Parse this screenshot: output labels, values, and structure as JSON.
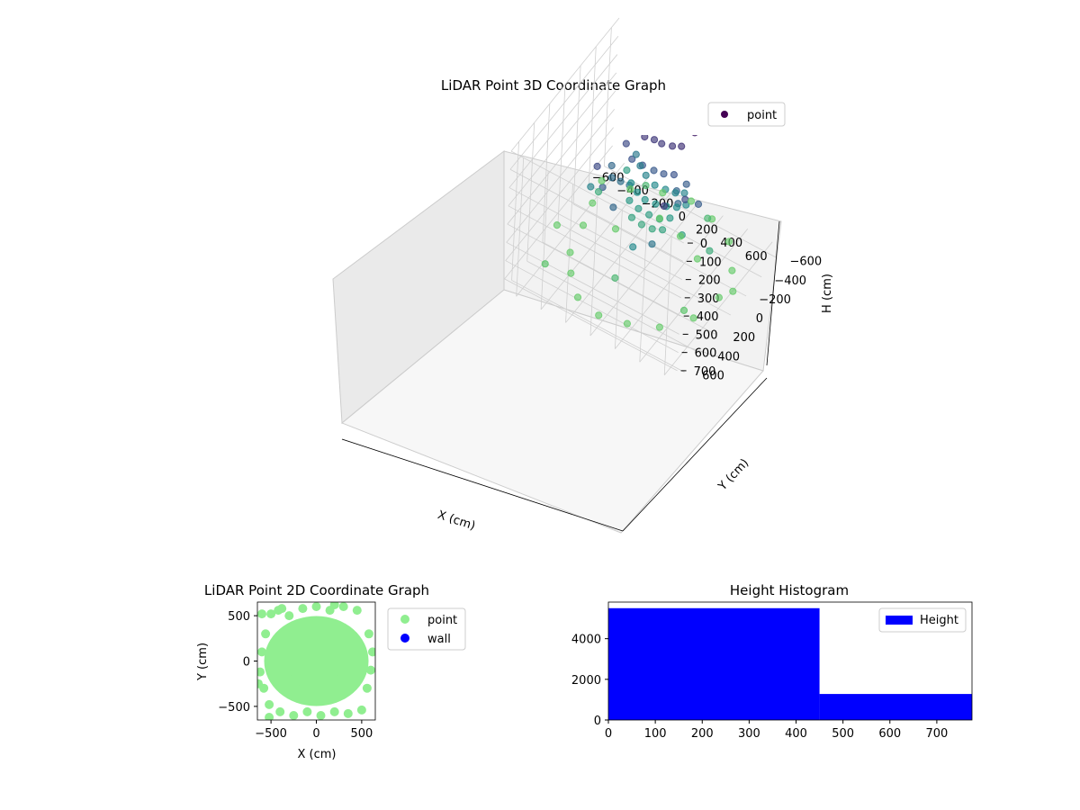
{
  "chart_data": [
    {
      "type": "scatter",
      "projection": "3d",
      "title": "LiDAR Point 3D Coordinate Graph",
      "xlabel": "X (cm)",
      "ylabel": "Y (cm)",
      "zlabel": "H (cm)",
      "xlim": [
        -700,
        700
      ],
      "ylim": [
        -700,
        700
      ],
      "zlim": [
        0,
        760
      ],
      "z_inverted": true,
      "xticks": [
        "−600",
        "−400",
        "−200",
        "0",
        "200",
        "400",
        "600"
      ],
      "yticks": [
        "−600",
        "−400",
        "−200",
        "0",
        "200",
        "400",
        "600"
      ],
      "zticks": [
        "0",
        "100",
        "200",
        "300",
        "400",
        "500",
        "600",
        "700"
      ],
      "grid": true,
      "colormap": "viridis",
      "legend": {
        "placement": "top-right",
        "entries": [
          "point"
        ]
      },
      "series": [
        {
          "name": "point",
          "color": "#440154",
          "points": [
            [
              -150,
              -200,
              60
            ],
            [
              -60,
              -200,
              55
            ],
            [
              40,
              -200,
              52
            ],
            [
              130,
              -220,
              58
            ],
            [
              200,
              -250,
              70
            ],
            [
              -200,
              -250,
              80
            ],
            [
              -220,
              -150,
              90
            ],
            [
              -180,
              -100,
              120
            ],
            [
              -120,
              -120,
              140
            ],
            [
              -60,
              -150,
              150
            ],
            [
              0,
              -150,
              150
            ],
            [
              80,
              -160,
              140
            ],
            [
              140,
              -180,
              130
            ],
            [
              -240,
              -80,
              200
            ],
            [
              -160,
              -30,
              230
            ],
            [
              -80,
              -40,
              240
            ],
            [
              0,
              -60,
              250
            ],
            [
              80,
              -60,
              240
            ],
            [
              150,
              -80,
              230
            ],
            [
              -300,
              0,
              300
            ],
            [
              -260,
              60,
              320
            ],
            [
              -200,
              40,
              330
            ],
            [
              -140,
              20,
              340
            ],
            [
              200,
              -40,
              280
            ],
            [
              240,
              -100,
              260
            ],
            [
              250,
              20,
              300
            ],
            [
              -260,
              -260,
              360
            ],
            [
              -200,
              -220,
              380
            ],
            [
              -140,
              -200,
              400
            ],
            [
              -60,
              -190,
              420
            ],
            [
              20,
              -200,
              420
            ],
            [
              100,
              -200,
              410
            ],
            [
              160,
              -220,
              400
            ],
            [
              -220,
              -140,
              440
            ],
            [
              -150,
              -110,
              450
            ],
            [
              -80,
              -100,
              460
            ],
            [
              0,
              -110,
              460
            ],
            [
              80,
              -120,
              450
            ],
            [
              150,
              -140,
              440
            ],
            [
              200,
              -180,
              430
            ],
            [
              -180,
              -60,
              480
            ],
            [
              -100,
              -50,
              490
            ],
            [
              -20,
              -60,
              500
            ],
            [
              60,
              -70,
              500
            ],
            [
              130,
              -90,
              480
            ],
            [
              -120,
              0,
              520
            ],
            [
              -40,
              0,
              530
            ],
            [
              40,
              -10,
              530
            ],
            [
              110,
              -30,
              520
            ],
            [
              260,
              -40,
              500
            ],
            [
              -300,
              200,
              200
            ],
            [
              -220,
              250,
              260
            ],
            [
              350,
              100,
              200
            ],
            [
              400,
              0,
              260
            ],
            [
              300,
              300,
              150
            ],
            [
              -400,
              100,
              400
            ],
            [
              -350,
              -300,
              500
            ],
            [
              250,
              350,
              350
            ],
            [
              -100,
              300,
              300
            ],
            [
              100,
              350,
              420
            ],
            [
              -550,
              -200,
              700
            ],
            [
              -500,
              0,
              700
            ],
            [
              -450,
              250,
              700
            ],
            [
              -350,
              400,
              700
            ],
            [
              -200,
              550,
              700
            ],
            [
              0,
              600,
              700
            ],
            [
              200,
              550,
              700
            ],
            [
              400,
              450,
              700
            ],
            [
              550,
              250,
              700
            ],
            [
              600,
              0,
              700
            ],
            [
              550,
              -250,
              700
            ],
            [
              400,
              -450,
              700
            ],
            [
              200,
              -550,
              700
            ],
            [
              0,
              -600,
              700
            ],
            [
              -200,
              -550,
              700
            ],
            [
              -400,
              -450,
              700
            ],
            [
              -600,
              -400,
              700
            ],
            [
              -650,
              100,
              700
            ],
            [
              650,
              -100,
              700
            ],
            [
              -100,
              -350,
              700
            ],
            [
              100,
              -300,
              700
            ],
            [
              300,
              -200,
              700
            ],
            [
              -300,
              -100,
              700
            ],
            [
              500,
              300,
              650
            ],
            [
              -500,
              500,
              650
            ],
            [
              -250,
              -400,
              600
            ],
            [
              250,
              -400,
              600
            ],
            [
              450,
              -100,
              550
            ],
            [
              -450,
              -100,
              550
            ],
            [
              0,
              400,
              600
            ]
          ]
        }
      ]
    },
    {
      "type": "scatter",
      "title": "LiDAR Point 2D Coordinate Graph",
      "xlabel": "X (cm)",
      "ylabel": "Y (cm)",
      "xlim": [
        -650,
        650
      ],
      "ylim": [
        -650,
        650
      ],
      "xticks": [
        "−500",
        "0",
        "500"
      ],
      "yticks": [
        "−500",
        "0",
        "500"
      ],
      "legend": {
        "placement": "outside-right",
        "entries": [
          "point",
          "wall"
        ]
      },
      "series": [
        {
          "name": "point",
          "color": "#90ee90",
          "points": [
            [
              -500,
              520
            ],
            [
              -420,
              560
            ],
            [
              -300,
              500
            ],
            [
              -150,
              580
            ],
            [
              0,
              600
            ],
            [
              150,
              560
            ],
            [
              300,
              600
            ],
            [
              450,
              560
            ],
            [
              -560,
              300
            ],
            [
              -600,
              100
            ],
            [
              -620,
              -120
            ],
            [
              -580,
              -300
            ],
            [
              -520,
              -480
            ],
            [
              -400,
              -560
            ],
            [
              -250,
              -600
            ],
            [
              -100,
              -560
            ],
            [
              50,
              -600
            ],
            [
              200,
              -560
            ],
            [
              350,
              -580
            ],
            [
              500,
              -540
            ],
            [
              560,
              -300
            ],
            [
              600,
              -100
            ],
            [
              620,
              100
            ],
            [
              580,
              300
            ],
            [
              -200,
              200
            ],
            [
              100,
              100
            ],
            [
              -50,
              -100
            ],
            [
              250,
              -200
            ],
            [
              -300,
              -200
            ],
            [
              300,
              250
            ],
            [
              0,
              300
            ],
            [
              -400,
              0
            ],
            [
              400,
              0
            ],
            [
              0,
              -350
            ],
            [
              -150,
              -300
            ],
            [
              150,
              350
            ],
            [
              -520,
              -620
            ],
            [
              -600,
              520
            ],
            [
              -640,
              -250
            ],
            [
              -380,
              580
            ],
            [
              200,
              620
            ]
          ]
        },
        {
          "name": "wall",
          "color": "#0000ff",
          "points": []
        }
      ]
    },
    {
      "type": "bar",
      "subtype": "histogram",
      "title": "Height Histogram",
      "xlabel": "",
      "ylabel": "",
      "xlim": [
        0,
        775
      ],
      "ylim": [
        0,
        5800
      ],
      "xticks": [
        "0",
        "100",
        "200",
        "300",
        "400",
        "500",
        "600",
        "700"
      ],
      "yticks": [
        "0",
        "2000",
        "4000"
      ],
      "legend": {
        "placement": "top-right",
        "entries": [
          "Height"
        ]
      },
      "series": [
        {
          "name": "Height",
          "color": "#0000ff",
          "bins": [
            {
              "x0": 0,
              "x1": 450,
              "count": 5500
            },
            {
              "x0": 450,
              "x1": 775,
              "count": 1280
            }
          ]
        }
      ]
    }
  ]
}
